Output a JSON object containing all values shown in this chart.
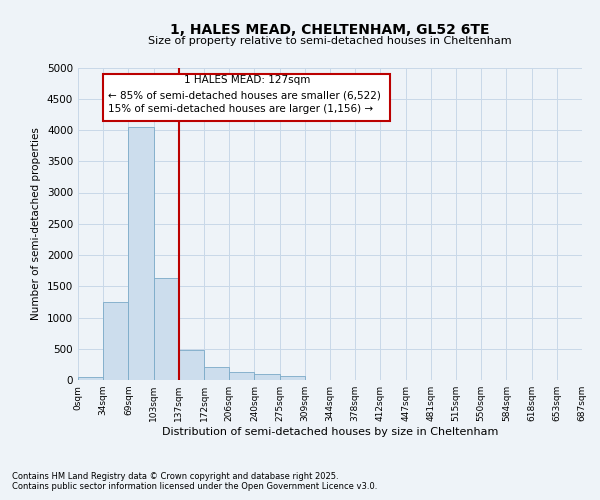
{
  "title": "1, HALES MEAD, CHELTENHAM, GL52 6TE",
  "subtitle": "Size of property relative to semi-detached houses in Cheltenham",
  "xlabel": "Distribution of semi-detached houses by size in Cheltenham",
  "ylabel": "Number of semi-detached properties",
  "property_label": "1 HALES MEAD: 127sqm",
  "pct_smaller": 85,
  "count_smaller": 6522,
  "pct_larger": 15,
  "count_larger": 1156,
  "bin_labels": [
    "0sqm",
    "34sqm",
    "69sqm",
    "103sqm",
    "137sqm",
    "172sqm",
    "206sqm",
    "240sqm",
    "275sqm",
    "309sqm",
    "344sqm",
    "378sqm",
    "412sqm",
    "447sqm",
    "481sqm",
    "515sqm",
    "550sqm",
    "584sqm",
    "618sqm",
    "653sqm",
    "687sqm"
  ],
  "bar_values": [
    50,
    1250,
    4050,
    1625,
    480,
    210,
    130,
    90,
    60,
    0,
    0,
    0,
    0,
    0,
    0,
    0,
    0,
    0,
    0,
    0
  ],
  "bar_color": "#ccdded",
  "bar_edge_color": "#7aaac8",
  "vline_x": 4.0,
  "vline_color": "#bb0000",
  "ylim": [
    0,
    5000
  ],
  "yticks": [
    0,
    500,
    1000,
    1500,
    2000,
    2500,
    3000,
    3500,
    4000,
    4500,
    5000
  ],
  "grid_color": "#c8d8e8",
  "annotation_box_color": "#bb0000",
  "footer_line1": "Contains HM Land Registry data © Crown copyright and database right 2025.",
  "footer_line2": "Contains public sector information licensed under the Open Government Licence v3.0.",
  "background_color": "#eef3f8"
}
